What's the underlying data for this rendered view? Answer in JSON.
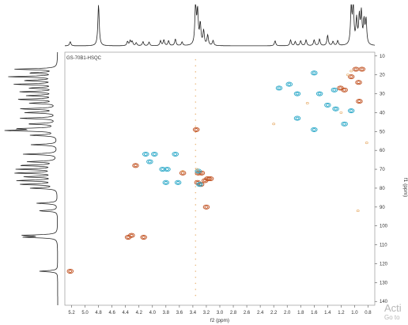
{
  "chart_data": {
    "type": "scatter",
    "title": "GS-70B1-HSQC",
    "xlabel": "f2 (ppm)",
    "ylabel": "f1 (ppm)",
    "xlim": [
      5.3,
      0.7
    ],
    "ylim": [
      8,
      142
    ],
    "x_ticks": [
      5.2,
      5.0,
      4.8,
      4.6,
      4.4,
      4.2,
      4.0,
      3.8,
      3.6,
      3.4,
      3.2,
      3.0,
      2.8,
      2.6,
      2.4,
      2.2,
      2.0,
      1.8,
      1.6,
      1.4,
      1.2,
      1.0,
      0.8
    ],
    "y_ticks": [
      10,
      20,
      30,
      40,
      50,
      60,
      70,
      80,
      90,
      100,
      110,
      120,
      130,
      140
    ],
    "colors": {
      "positive": "#c0501f",
      "negative": "#2aa8c8",
      "noise": "#e8b070",
      "axis": "#555555",
      "trace": "#222222"
    },
    "series": [
      {
        "phase": "positive",
        "points": [
          [
            5.22,
            124
          ],
          [
            4.36,
            106
          ],
          [
            4.31,
            105
          ],
          [
            4.13,
            106
          ],
          [
            4.25,
            68
          ],
          [
            3.35,
            49
          ],
          [
            3.32,
            72
          ],
          [
            3.27,
            72
          ],
          [
            3.33,
            77
          ],
          [
            3.28,
            78
          ],
          [
            3.22,
            76
          ],
          [
            3.18,
            75
          ],
          [
            3.14,
            75
          ],
          [
            3.2,
            90
          ],
          [
            3.55,
            72
          ],
          [
            1.21,
            27
          ],
          [
            1.15,
            28
          ],
          [
            1.05,
            21
          ],
          [
            0.98,
            17
          ],
          [
            0.89,
            17
          ],
          [
            0.94,
            24
          ],
          [
            0.93,
            34
          ]
        ]
      },
      {
        "phase": "negative",
        "points": [
          [
            4.1,
            62
          ],
          [
            3.97,
            62
          ],
          [
            3.66,
            62
          ],
          [
            4.04,
            66
          ],
          [
            3.85,
            70
          ],
          [
            3.78,
            70
          ],
          [
            3.8,
            77
          ],
          [
            3.62,
            77
          ],
          [
            3.32,
            71
          ],
          [
            3.3,
            78
          ],
          [
            1.97,
            25
          ],
          [
            1.85,
            30
          ],
          [
            1.6,
            19
          ],
          [
            1.52,
            30
          ],
          [
            1.4,
            36
          ],
          [
            1.3,
            28
          ],
          [
            1.28,
            38
          ],
          [
            1.05,
            39
          ],
          [
            1.15,
            46
          ],
          [
            2.12,
            27
          ],
          [
            1.85,
            43
          ],
          [
            1.6,
            49
          ]
        ]
      },
      {
        "phase": "noise",
        "points": [
          [
            2.2,
            46
          ],
          [
            0.82,
            56
          ],
          [
            3.55,
            71
          ],
          [
            1.05,
            18
          ],
          [
            1.1,
            20
          ],
          [
            1.2,
            40
          ],
          [
            1.7,
            35
          ],
          [
            0.95,
            92
          ],
          [
            3.34,
            70
          ]
        ]
      }
    ],
    "t1_noise_column_x": 3.36,
    "f2_projection": {
      "peaks": [
        [
          5.22,
          0.1
        ],
        [
          4.8,
          1.0
        ],
        [
          4.37,
          0.1
        ],
        [
          4.33,
          0.12
        ],
        [
          4.3,
          0.1
        ],
        [
          4.24,
          0.07
        ],
        [
          4.14,
          0.1
        ],
        [
          4.05,
          0.09
        ],
        [
          3.88,
          0.12
        ],
        [
          3.83,
          0.14
        ],
        [
          3.76,
          0.12
        ],
        [
          3.66,
          0.16
        ],
        [
          3.56,
          0.09
        ],
        [
          3.36,
          1.0
        ],
        [
          3.33,
          0.8
        ],
        [
          3.29,
          0.5
        ],
        [
          3.24,
          0.35
        ],
        [
          3.18,
          0.25
        ],
        [
          3.1,
          0.12
        ],
        [
          2.18,
          0.12
        ],
        [
          1.95,
          0.14
        ],
        [
          1.88,
          0.1
        ],
        [
          1.8,
          0.12
        ],
        [
          1.72,
          0.14
        ],
        [
          1.6,
          0.14
        ],
        [
          1.52,
          0.16
        ],
        [
          1.4,
          0.25
        ],
        [
          1.32,
          0.1
        ],
        [
          1.25,
          0.12
        ],
        [
          1.05,
          0.9
        ],
        [
          1.02,
          0.95
        ],
        [
          0.97,
          0.6
        ],
        [
          0.93,
          0.65
        ],
        [
          0.9,
          0.75
        ],
        [
          0.86,
          0.55
        ],
        [
          0.83,
          0.6
        ]
      ]
    },
    "f1_projection": {
      "peaks": [
        [
          17,
          0.8
        ],
        [
          19,
          0.5
        ],
        [
          21,
          0.9
        ],
        [
          23,
          0.6
        ],
        [
          25,
          0.8
        ],
        [
          27,
          0.5
        ],
        [
          29,
          0.7
        ],
        [
          31,
          0.55
        ],
        [
          33,
          0.75
        ],
        [
          35,
          0.5
        ],
        [
          38,
          0.7
        ],
        [
          40,
          0.6
        ],
        [
          43,
          0.7
        ],
        [
          46,
          0.55
        ],
        [
          48.5,
          0.7
        ],
        [
          49.5,
          1.0
        ],
        [
          52,
          0.5
        ],
        [
          57,
          0.5
        ],
        [
          62,
          0.65
        ],
        [
          66,
          0.55
        ],
        [
          68,
          0.7
        ],
        [
          70,
          0.75
        ],
        [
          72,
          0.8
        ],
        [
          74,
          0.6
        ],
        [
          76,
          0.75
        ],
        [
          78,
          0.7
        ],
        [
          80,
          0.5
        ],
        [
          88,
          0.4
        ],
        [
          92,
          0.35
        ],
        [
          105,
          0.65
        ],
        [
          106,
          0.6
        ],
        [
          124,
          0.35
        ]
      ]
    }
  },
  "watermark": {
    "line1": "Acti",
    "line2": "Go to"
  }
}
